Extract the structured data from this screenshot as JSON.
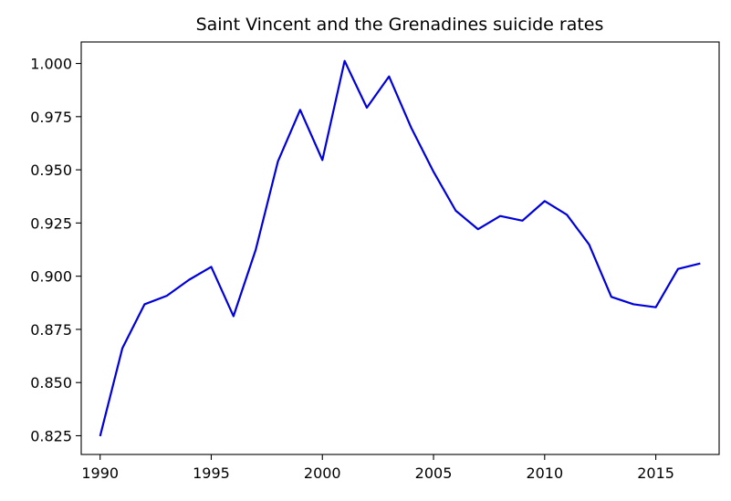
{
  "chart_data": {
    "type": "line",
    "title": "Saint Vincent and the Grenadines suicide rates",
    "xlabel": "",
    "ylabel": "",
    "xlim": [
      1989.15,
      2017.85
    ],
    "ylim": [
      0.8162,
      1.0101
    ],
    "x_ticks": [
      1990,
      1995,
      2000,
      2005,
      2010,
      2015
    ],
    "x_tick_labels": [
      "1990",
      "1995",
      "2000",
      "2005",
      "2010",
      "2015"
    ],
    "y_ticks": [
      0.825,
      0.85,
      0.875,
      0.9,
      0.925,
      0.95,
      0.975,
      1.0
    ],
    "y_tick_labels": [
      "0.825",
      "0.850",
      "0.875",
      "0.900",
      "0.925",
      "0.950",
      "0.975",
      "1.000"
    ],
    "grid": false,
    "legend": "none",
    "series": [
      {
        "color": "#0000dd",
        "x": [
          1990,
          1991,
          1992,
          1993,
          1994,
          1995,
          1996,
          1997,
          1998,
          1999,
          2000,
          2001,
          2002,
          2003,
          2004,
          2005,
          2006,
          2007,
          2008,
          2009,
          2010,
          2011,
          2012,
          2013,
          2014,
          2015,
          2016,
          2017
        ],
        "y": [
          0.8248,
          0.8661,
          0.8868,
          0.8908,
          0.8983,
          0.9044,
          0.8812,
          0.9124,
          0.954,
          0.9782,
          0.9546,
          1.0012,
          0.9792,
          0.9939,
          0.9697,
          0.9491,
          0.9308,
          0.9221,
          0.9283,
          0.9261,
          0.9353,
          0.9289,
          0.9149,
          0.8903,
          0.8868,
          0.8854,
          0.9034,
          0.906
        ]
      }
    ]
  }
}
